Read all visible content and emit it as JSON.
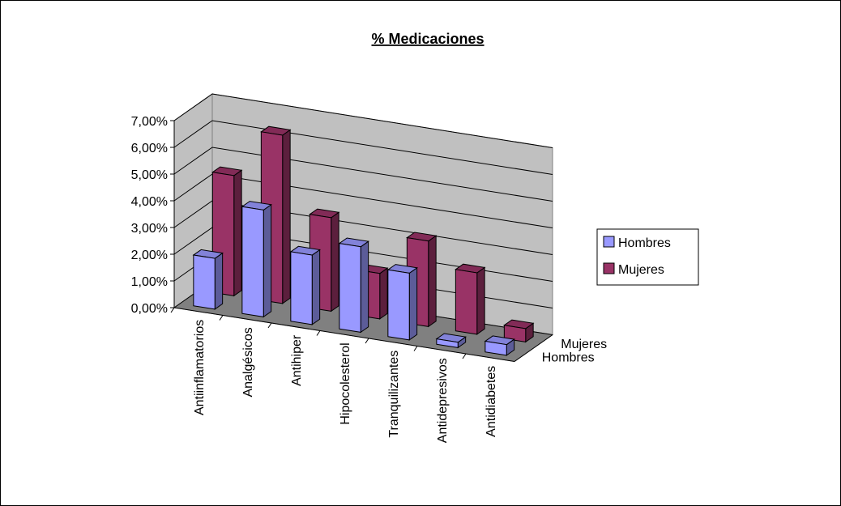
{
  "chart_data": {
    "type": "bar3d",
    "title": "% Medicaciones",
    "categories": [
      "Antiinflamatorios",
      "Analgésicos",
      "Antihiper",
      "Hipocolesterol",
      "Tranquilizantes",
      "Antidepresivos",
      "Antidiabetes"
    ],
    "series": [
      {
        "name": "Hombres",
        "color": "#9999ff",
        "values": [
          1.9,
          4.0,
          2.6,
          3.2,
          2.5,
          0.2,
          0.4
        ]
      },
      {
        "name": "Mujeres",
        "color": "#993366",
        "values": [
          4.5,
          6.3,
          3.5,
          1.7,
          3.2,
          2.3,
          0.5
        ]
      }
    ],
    "ylim": [
      0,
      7
    ],
    "yticks": [
      {
        "value": 0,
        "label": "0,00%"
      },
      {
        "value": 1,
        "label": "1,00%"
      },
      {
        "value": 2,
        "label": "2,00%"
      },
      {
        "value": 3,
        "label": "3,00%"
      },
      {
        "value": 4,
        "label": "4,00%"
      },
      {
        "value": 5,
        "label": "5,00%"
      },
      {
        "value": 6,
        "label": "6,00%"
      },
      {
        "value": 7,
        "label": "7,00%"
      }
    ],
    "grid": true,
    "legend": "right"
  }
}
